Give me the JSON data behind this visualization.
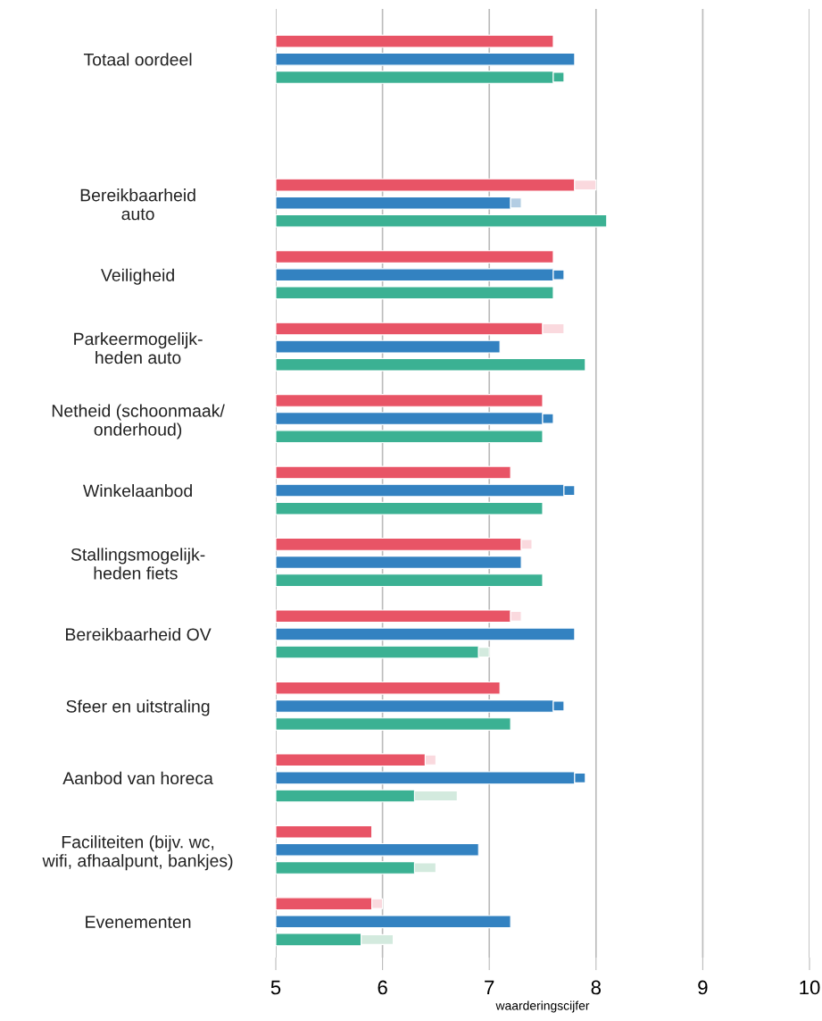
{
  "chart_data": {
    "type": "bar",
    "orientation": "horizontal",
    "categories": [
      "Totaal oordeel",
      null,
      "Bereikbaarheid\nauto",
      "Veiligheid",
      "Parkeermogelijk-\nheden auto",
      "Netheid (schoonmaak/\nonderhoud)",
      "Winkelaanbod",
      "Stallingsmogelijk-\nheden fiets ",
      "Bereikbaarheid OV",
      "Sfeer en uitstraling",
      "Aanbod van horeca",
      "Faciliteiten (bijv. wc,\nwifi, afhaalpunt, bankjes)",
      "Evenementen"
    ],
    "series": [
      {
        "color": "#e85466",
        "values": [
          7.6,
          null,
          7.8,
          7.6,
          7.5,
          7.5,
          7.2,
          7.3,
          7.2,
          7.1,
          6.4,
          5.9,
          5.9
        ]
      },
      {
        "colors": [
          "#e85466",
          null,
          "#fad9de",
          "#e85466",
          "#fad9de",
          "#e85466",
          "#e85466",
          "#fad9de",
          "#fad9de",
          "#e85466",
          "#fad9de",
          "#e85466",
          "#fad9de"
        ],
        "base": [
          null,
          null,
          7.8,
          null,
          7.5,
          null,
          null,
          7.3,
          7.2,
          null,
          6.4,
          null,
          5.9
        ],
        "values": [
          null,
          null,
          0.2,
          null,
          0.2,
          null,
          null,
          0.1,
          0.1,
          null,
          0.1,
          null,
          0.1
        ]
      },
      {
        "color": "#3382c1",
        "values": [
          7.8,
          null,
          7.2,
          7.6,
          7.1,
          7.5,
          7.7,
          7.3,
          7.8,
          7.6,
          7.8,
          6.9,
          7.2
        ]
      },
      {
        "colors": [
          "#3382c1",
          null,
          "#b3cde3",
          "#3382c1",
          "#3382c1",
          "#3382c1",
          "#3382c1",
          "#3382c1",
          "#3382c1",
          "#3382c1",
          "#3382c1",
          "#3382c1",
          "#3382c1"
        ],
        "base": [
          null,
          null,
          7.2,
          7.6,
          null,
          7.5,
          7.7,
          null,
          null,
          7.6,
          7.8,
          null,
          null
        ],
        "values": [
          null,
          null,
          0.1,
          0.1,
          null,
          0.1,
          0.1,
          null,
          null,
          0.1,
          0.1,
          null,
          null
        ]
      },
      {
        "color": "#3bb193",
        "values": [
          7.6,
          null,
          8.1,
          7.6,
          7.9,
          7.5,
          7.5,
          7.5,
          6.9,
          7.2,
          6.3,
          6.3,
          5.8
        ]
      },
      {
        "colors": [
          "#3bb193",
          null,
          "#3bb193",
          "#3bb193",
          "#3bb193",
          "#3bb193",
          "#3bb193",
          "#3bb193",
          "#d3eade",
          "#3bb193",
          "#d3eade",
          "#d3eade",
          "#d3eade"
        ],
        "base": [
          7.6,
          null,
          null,
          null,
          null,
          null,
          null,
          null,
          6.9,
          null,
          6.3,
          6.3,
          5.8
        ],
        "values": [
          0.1,
          null,
          null,
          null,
          null,
          null,
          null,
          null,
          0.1,
          null,
          0.4,
          0.2,
          0.3
        ]
      }
    ],
    "xlim": [
      5,
      10
    ],
    "xticks": [
      5,
      6,
      7,
      8,
      9,
      10
    ],
    "grid": "x",
    "xlabel": "waarderingscijfer"
  }
}
